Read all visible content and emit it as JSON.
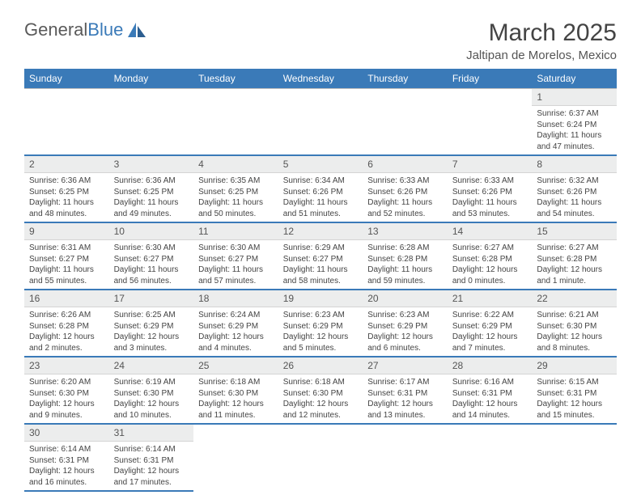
{
  "brand": {
    "name_a": "General",
    "name_b": "Blue"
  },
  "title": "March 2025",
  "location": "Jaltipan de Morelos, Mexico",
  "colors": {
    "accent": "#3a7ab8",
    "header_bg": "#3a7ab8",
    "daynum_bg": "#eceded",
    "border": "#bcbcbc"
  },
  "weekdays": [
    "Sunday",
    "Monday",
    "Tuesday",
    "Wednesday",
    "Thursday",
    "Friday",
    "Saturday"
  ],
  "weeks": [
    [
      null,
      null,
      null,
      null,
      null,
      null,
      {
        "n": "1",
        "sr": "Sunrise: 6:37 AM",
        "ss": "Sunset: 6:24 PM",
        "dl": "Daylight: 11 hours and 47 minutes."
      }
    ],
    [
      {
        "n": "2",
        "sr": "Sunrise: 6:36 AM",
        "ss": "Sunset: 6:25 PM",
        "dl": "Daylight: 11 hours and 48 minutes."
      },
      {
        "n": "3",
        "sr": "Sunrise: 6:36 AM",
        "ss": "Sunset: 6:25 PM",
        "dl": "Daylight: 11 hours and 49 minutes."
      },
      {
        "n": "4",
        "sr": "Sunrise: 6:35 AM",
        "ss": "Sunset: 6:25 PM",
        "dl": "Daylight: 11 hours and 50 minutes."
      },
      {
        "n": "5",
        "sr": "Sunrise: 6:34 AM",
        "ss": "Sunset: 6:26 PM",
        "dl": "Daylight: 11 hours and 51 minutes."
      },
      {
        "n": "6",
        "sr": "Sunrise: 6:33 AM",
        "ss": "Sunset: 6:26 PM",
        "dl": "Daylight: 11 hours and 52 minutes."
      },
      {
        "n": "7",
        "sr": "Sunrise: 6:33 AM",
        "ss": "Sunset: 6:26 PM",
        "dl": "Daylight: 11 hours and 53 minutes."
      },
      {
        "n": "8",
        "sr": "Sunrise: 6:32 AM",
        "ss": "Sunset: 6:26 PM",
        "dl": "Daylight: 11 hours and 54 minutes."
      }
    ],
    [
      {
        "n": "9",
        "sr": "Sunrise: 6:31 AM",
        "ss": "Sunset: 6:27 PM",
        "dl": "Daylight: 11 hours and 55 minutes."
      },
      {
        "n": "10",
        "sr": "Sunrise: 6:30 AM",
        "ss": "Sunset: 6:27 PM",
        "dl": "Daylight: 11 hours and 56 minutes."
      },
      {
        "n": "11",
        "sr": "Sunrise: 6:30 AM",
        "ss": "Sunset: 6:27 PM",
        "dl": "Daylight: 11 hours and 57 minutes."
      },
      {
        "n": "12",
        "sr": "Sunrise: 6:29 AM",
        "ss": "Sunset: 6:27 PM",
        "dl": "Daylight: 11 hours and 58 minutes."
      },
      {
        "n": "13",
        "sr": "Sunrise: 6:28 AM",
        "ss": "Sunset: 6:28 PM",
        "dl": "Daylight: 11 hours and 59 minutes."
      },
      {
        "n": "14",
        "sr": "Sunrise: 6:27 AM",
        "ss": "Sunset: 6:28 PM",
        "dl": "Daylight: 12 hours and 0 minutes."
      },
      {
        "n": "15",
        "sr": "Sunrise: 6:27 AM",
        "ss": "Sunset: 6:28 PM",
        "dl": "Daylight: 12 hours and 1 minute."
      }
    ],
    [
      {
        "n": "16",
        "sr": "Sunrise: 6:26 AM",
        "ss": "Sunset: 6:28 PM",
        "dl": "Daylight: 12 hours and 2 minutes."
      },
      {
        "n": "17",
        "sr": "Sunrise: 6:25 AM",
        "ss": "Sunset: 6:29 PM",
        "dl": "Daylight: 12 hours and 3 minutes."
      },
      {
        "n": "18",
        "sr": "Sunrise: 6:24 AM",
        "ss": "Sunset: 6:29 PM",
        "dl": "Daylight: 12 hours and 4 minutes."
      },
      {
        "n": "19",
        "sr": "Sunrise: 6:23 AM",
        "ss": "Sunset: 6:29 PM",
        "dl": "Daylight: 12 hours and 5 minutes."
      },
      {
        "n": "20",
        "sr": "Sunrise: 6:23 AM",
        "ss": "Sunset: 6:29 PM",
        "dl": "Daylight: 12 hours and 6 minutes."
      },
      {
        "n": "21",
        "sr": "Sunrise: 6:22 AM",
        "ss": "Sunset: 6:29 PM",
        "dl": "Daylight: 12 hours and 7 minutes."
      },
      {
        "n": "22",
        "sr": "Sunrise: 6:21 AM",
        "ss": "Sunset: 6:30 PM",
        "dl": "Daylight: 12 hours and 8 minutes."
      }
    ],
    [
      {
        "n": "23",
        "sr": "Sunrise: 6:20 AM",
        "ss": "Sunset: 6:30 PM",
        "dl": "Daylight: 12 hours and 9 minutes."
      },
      {
        "n": "24",
        "sr": "Sunrise: 6:19 AM",
        "ss": "Sunset: 6:30 PM",
        "dl": "Daylight: 12 hours and 10 minutes."
      },
      {
        "n": "25",
        "sr": "Sunrise: 6:18 AM",
        "ss": "Sunset: 6:30 PM",
        "dl": "Daylight: 12 hours and 11 minutes."
      },
      {
        "n": "26",
        "sr": "Sunrise: 6:18 AM",
        "ss": "Sunset: 6:30 PM",
        "dl": "Daylight: 12 hours and 12 minutes."
      },
      {
        "n": "27",
        "sr": "Sunrise: 6:17 AM",
        "ss": "Sunset: 6:31 PM",
        "dl": "Daylight: 12 hours and 13 minutes."
      },
      {
        "n": "28",
        "sr": "Sunrise: 6:16 AM",
        "ss": "Sunset: 6:31 PM",
        "dl": "Daylight: 12 hours and 14 minutes."
      },
      {
        "n": "29",
        "sr": "Sunrise: 6:15 AM",
        "ss": "Sunset: 6:31 PM",
        "dl": "Daylight: 12 hours and 15 minutes."
      }
    ],
    [
      {
        "n": "30",
        "sr": "Sunrise: 6:14 AM",
        "ss": "Sunset: 6:31 PM",
        "dl": "Daylight: 12 hours and 16 minutes."
      },
      {
        "n": "31",
        "sr": "Sunrise: 6:14 AM",
        "ss": "Sunset: 6:31 PM",
        "dl": "Daylight: 12 hours and 17 minutes."
      },
      null,
      null,
      null,
      null,
      null
    ]
  ]
}
